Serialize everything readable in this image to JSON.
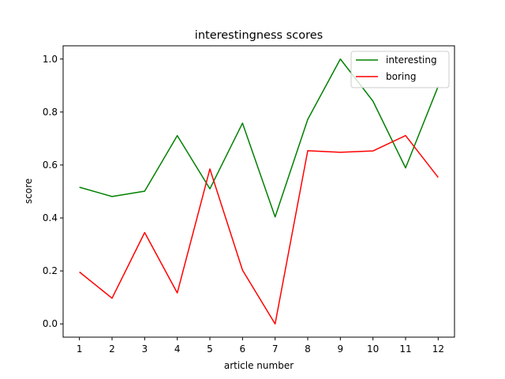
{
  "chart_data": {
    "type": "line",
    "title": "interestingness scores",
    "xlabel": "article number",
    "ylabel": "score",
    "x": [
      1,
      2,
      3,
      4,
      5,
      6,
      7,
      8,
      9,
      10,
      11,
      12
    ],
    "xlim": [
      0.5,
      12.5
    ],
    "ylim": [
      -0.05,
      1.05
    ],
    "yticks": [
      0.0,
      0.2,
      0.4,
      0.6,
      0.8,
      1.0
    ],
    "ytick_labels": [
      "0.0",
      "0.2",
      "0.4",
      "0.6",
      "0.8",
      "1.0"
    ],
    "grid": false,
    "legend_position": "top-right",
    "series": [
      {
        "name": "interesting",
        "color": "#008000",
        "values": [
          0.516,
          0.481,
          0.501,
          0.711,
          0.51,
          0.758,
          0.404,
          0.772,
          1.0,
          0.841,
          0.589,
          0.897
        ]
      },
      {
        "name": "boring",
        "color": "#ff0000",
        "values": [
          0.196,
          0.097,
          0.345,
          0.117,
          0.585,
          0.203,
          0.0,
          0.654,
          0.648,
          0.653,
          0.711,
          0.553
        ]
      }
    ]
  }
}
